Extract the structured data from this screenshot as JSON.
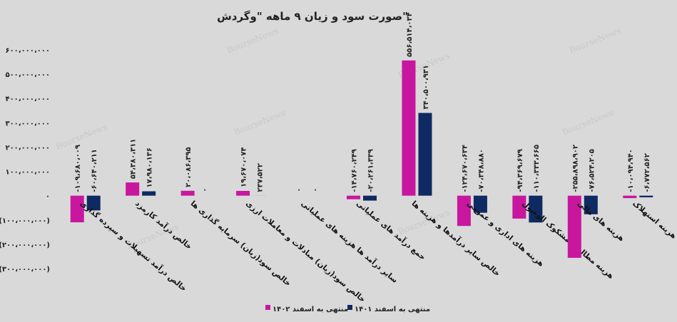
{
  "chart_data": {
    "type": "bar",
    "title": "صورت سود و زیان ۹ ماهه \"وگردش\"",
    "watermark": "BourseNews",
    "categories": [
      "خالص درآمد تسهیلات و سپرده گذاری",
      "خالص درآمد کارمزد",
      "خالص سود(زیان) سرمایه گذاری ها",
      "خالص سود(زیان) مبادلات و معاملات ارزی",
      "سایر درآمد ها هزینه های عملیاتی",
      "جمع درآمد های عملیاتی",
      "خالص سایر درآمدها و هزینه ها",
      "هزینه های اداری و عمومی",
      "هزینه مطالبات مشکوک الوصول",
      "هزینه های مالی",
      "هزینه استهلاک"
    ],
    "series": [
      {
        "name": "منتهی به اسفند ۱۴۰۲",
        "color": "#c8179e",
        "values": [
          -109680009,
          54380311,
          20086395,
          19670074,
          0,
          -14760249,
          556514034,
          -124670634,
          -94369679,
          -255898902,
          -10094940
        ],
        "value_labels": [
          "-۱۰۹،۶۸۰،۰۰۹",
          "۵۴،۳۸۰،۳۱۱",
          "۲۰،۰۸۶،۳۹۵",
          "۱۹،۶۷۰،۰۷۴",
          "۰",
          "-۱۴،۷۶۰،۲۴۹",
          "۵۵۶،۵۱۴،۰۳۴",
          "-۱۲۴،۶۷۰،۶۳۴",
          "-۹۴،۳۶۹،۶۷۹",
          "-۲۵۵،۸۹۸،۹۰۲",
          "-۱۰،۰۹۴،۹۴۰"
        ]
      },
      {
        "name": "منتهی به اسفند ۱۴۰۱",
        "color": "#0e2a62",
        "values": [
          -60640211,
          17980136,
          0,
          237522,
          0,
          -20261339,
          340500931,
          -70348880,
          -110333665,
          -76524205,
          -6772562
        ],
        "value_labels": [
          "-۶۰،۶۴۰،۲۱۱",
          "۱۷،۹۸۰،۱۳۶",
          "۰",
          "۲۳۷،۵۲۲",
          "۰",
          "-۲۰،۲۶۱،۳۳۹",
          "۳۴۰،۵۰۰،۹۳۱",
          "-۷۰،۳۴۸،۸۸۰",
          "-۱۱۰،۳۳۳،۶۶۵",
          "-۷۶،۵۲۴،۲۰۵",
          "-۶،۷۷۲،۵۶۲"
        ]
      }
    ],
    "ylim": [
      -300000000,
      600000000
    ],
    "yticks": [
      {
        "value": 600000000,
        "label": "۶۰۰،۰۰۰،۰۰۰"
      },
      {
        "value": 500000000,
        "label": "۵۰۰،۰۰۰،۰۰۰"
      },
      {
        "value": 400000000,
        "label": "۴۰۰،۰۰۰،۰۰۰"
      },
      {
        "value": 300000000,
        "label": "۳۰۰،۰۰۰،۰۰۰"
      },
      {
        "value": 200000000,
        "label": "۲۰۰،۰۰۰،۰۰۰"
      },
      {
        "value": 100000000,
        "label": "۱۰۰،۰۰۰،۰۰۰"
      },
      {
        "value": 0,
        "label": "۰"
      },
      {
        "value": -100000000,
        "label": "(۱۰۰،۰۰۰،۰۰۰)"
      },
      {
        "value": -200000000,
        "label": "(۲۰۰،۰۰۰،۰۰۰)"
      },
      {
        "value": -300000000,
        "label": "(۳۰۰،۰۰۰،۰۰۰)"
      }
    ],
    "grid": false
  }
}
